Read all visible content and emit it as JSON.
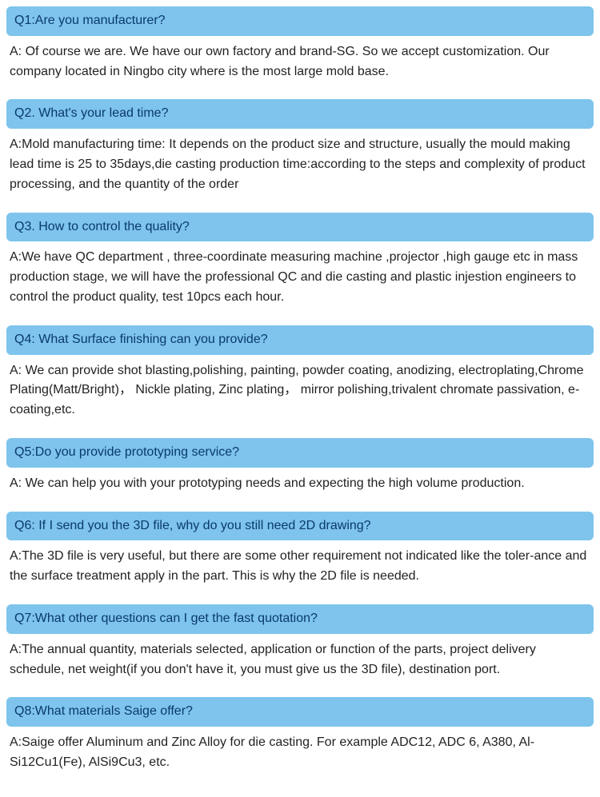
{
  "faq": {
    "q_bar_bg": "#7ec4ed",
    "q_text_color": "#0a3a6b",
    "a_text_color": "#222222",
    "bg_color": "#ffffff",
    "q_fontsize": 16,
    "a_fontsize": 16,
    "border_radius": 6,
    "items": [
      {
        "q": "Q1:Are you manufacturer?",
        "a": "A: Of course we are. We have our own factory and brand-SG. So we accept customization. Our company located in Ningbo city where is the most large mold base."
      },
      {
        "q": "Q2. What's your lead time?",
        "a": "A:Mold manufacturing time: It depends on the product size and structure, usually the mould making lead time is 25 to 35days,die casting production time:according to the steps and complexity of product processing, and the quantity of the order"
      },
      {
        "q": "Q3. How to control the quality?",
        "a": "A:We have QC department , three-coordinate measuring machine ,projector ,high gauge etc in mass production stage, we will have the professional QC and die casting and plastic injestion engineers to control the product quality, test 10pcs each hour."
      },
      {
        "q": "Q4: What Surface finishing can you provide?",
        "a": "A: We can provide shot blasting,polishing, painting, powder coating, anodizing, electroplating,Chrome Plating(Matt/Bright)， Nickle plating, Zinc plating， mirror polishing,trivalent chromate passivation, e-coating,etc."
      },
      {
        "q": "Q5:Do you provide prototyping service?",
        "a": "A: We can help you with your prototyping needs and expecting the high volume production."
      },
      {
        "q": "Q6: If I send you the 3D file, why do you still need 2D drawing?",
        "a": "A:The 3D file is very useful, but there are some other requirement not indicated like the toler-ance and the surface treatment apply in the part. This is why the 2D file is needed."
      },
      {
        "q": "Q7:What other questions can I get the fast quotation?",
        "a": "A:The annual quantity, materials selected, application or function of the parts, project delivery schedule, net weight(if you don't have it, you must give us the 3D file), destination port."
      },
      {
        "q": "Q8:What materials Saige offer?",
        "a": "A:Saige offer Aluminum and Zinc Alloy for die casting. For example ADC12, ADC 6, A380, Al-Si12Cu1(Fe), AlSi9Cu3, etc."
      }
    ]
  }
}
